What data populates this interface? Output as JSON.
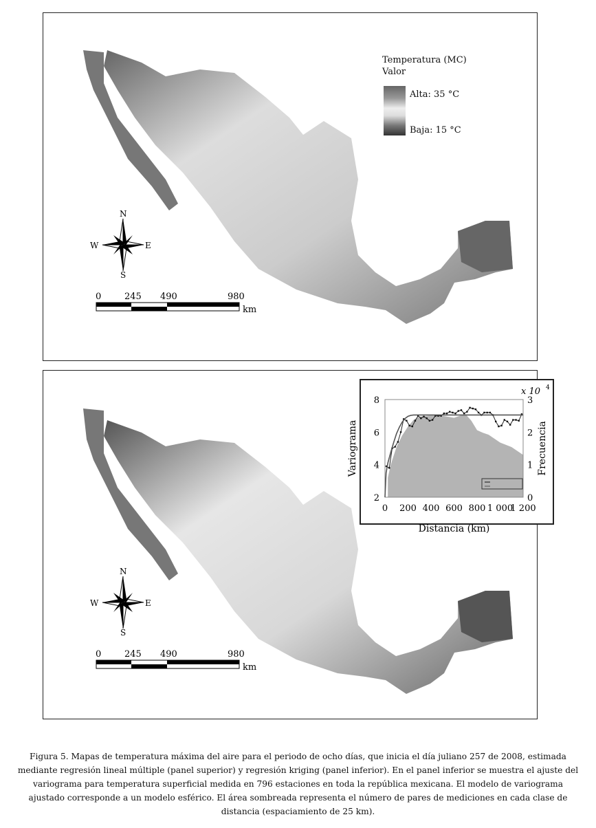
{
  "maps": {
    "top": {
      "legend": {
        "title": "Temperatura (MC)",
        "subtitle": "Valor",
        "high": "Alta: 35 °C",
        "low": "Baja: 15 °C"
      }
    },
    "compass": {
      "n": "N",
      "s": "S",
      "e": "E",
      "w": "W"
    },
    "scale_bar": {
      "ticks": [
        "0",
        "245",
        "490",
        "980"
      ],
      "unit": "km"
    }
  },
  "chart_data": {
    "type": "line",
    "xlabel": "Distancia (km)",
    "ylabel": "Variograma",
    "ylabel_right": "Frecuencia",
    "right_multiplier": "x 10",
    "right_multiplier_exp": "4",
    "xlim": [
      0,
      1200
    ],
    "ylim": [
      2,
      8
    ],
    "ylim_right": [
      0,
      3
    ],
    "xticks": [
      "0",
      "200",
      "400",
      "600",
      "800",
      "1 000",
      "1 200"
    ],
    "yticks": [
      "2",
      "4",
      "6",
      "8"
    ],
    "yticks_right": [
      "0",
      "1",
      "2",
      "3"
    ],
    "legend_placement": "bottom-right",
    "series": [
      {
        "type": "line-markers",
        "axis": "left",
        "color": "#222",
        "x": [
          12.5,
          37.5,
          62.5,
          87.5,
          112.5,
          137.5,
          162.5,
          187.5,
          212.5,
          237.5,
          262.5,
          287.5,
          312.5,
          337.5,
          362.5,
          387.5,
          412.5,
          437.5,
          462.5,
          487.5,
          512.5,
          537.5,
          562.5,
          587.5,
          612.5,
          637.5,
          662.5,
          687.5,
          712.5,
          737.5,
          762.5,
          787.5,
          812.5,
          837.5,
          862.5,
          887.5,
          912.5,
          937.5,
          962.5,
          987.5,
          1012.5,
          1037.5,
          1062.5,
          1087.5,
          1112.5,
          1137.5,
          1162.5,
          1187.5
        ],
        "y": [
          3.9,
          3.8,
          5.0,
          5.1,
          5.4,
          6.0,
          6.8,
          6.7,
          6.4,
          6.35,
          6.7,
          7.0,
          6.85,
          6.95,
          6.85,
          6.7,
          6.75,
          7.0,
          7.0,
          7.0,
          7.15,
          7.15,
          7.25,
          7.2,
          7.15,
          7.3,
          7.35,
          7.15,
          7.25,
          7.5,
          7.45,
          7.4,
          7.2,
          7.05,
          7.2,
          7.2,
          7.2,
          7.05,
          6.65,
          6.35,
          6.4,
          6.75,
          6.65,
          6.45,
          6.75,
          6.75,
          6.7,
          7.1
        ]
      },
      {
        "type": "line",
        "axis": "left",
        "color": "#555",
        "x": [
          0,
          10,
          25,
          50,
          75,
          100,
          125,
          150,
          175,
          200,
          225,
          250,
          270,
          1200
        ],
        "y": [
          2.0,
          3.5,
          4.1,
          4.75,
          5.35,
          5.9,
          6.3,
          6.62,
          6.84,
          6.97,
          7.03,
          7.05,
          7.05,
          7.05
        ]
      },
      {
        "type": "area",
        "axis": "right",
        "color": "#b4b4b4",
        "x": [
          25,
          50,
          100,
          150,
          200,
          250,
          300,
          400,
          500,
          600,
          650,
          700,
          750,
          800,
          850,
          900,
          1000,
          1100,
          1200
        ],
        "y": [
          0.6,
          1.0,
          1.54,
          1.9,
          2.17,
          2.38,
          2.48,
          2.51,
          2.5,
          2.44,
          2.5,
          2.55,
          2.35,
          2.06,
          1.98,
          1.92,
          1.68,
          1.54,
          1.3
        ]
      }
    ]
  },
  "caption": "Figura 5. Mapas de temperatura máxima del aire para el periodo de ocho días, que inicia el día juliano 257 de 2008, estimada mediante regresión lineal múltiple (panel superior) y regresión kriging (panel inferior). En el panel inferior se muestra el ajuste del variograma para temperatura superficial medida en 796 estaciones en toda la república mexicana. El modelo de variograma ajustado corresponde a un modelo esférico. El área sombreada representa el número de pares de mediciones en cada clase de distancia (espaciamiento de 25 km)."
}
